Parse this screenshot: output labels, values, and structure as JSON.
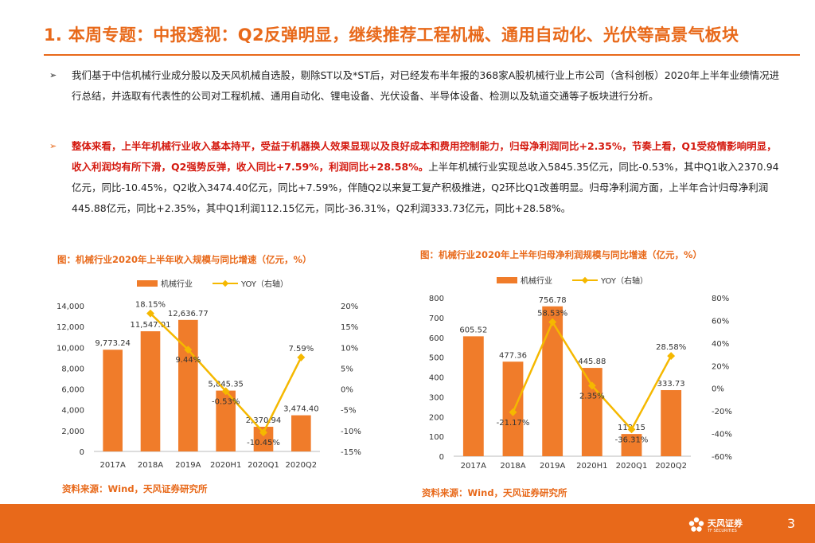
{
  "title": "1. 本周专题：中报透视：Q2反弹明显，继续推荐工程机械、通用自动化、光伏等高景气板块",
  "bullets": {
    "glyph": "➢",
    "p1": "我们基于中信机械行业成分股以及天风机械自选股，剔除ST以及*ST后，对已经发布半年报的368家A股机械行业上市公司（含科创板）2020年上半年业绩情况进行总结，并选取有代表性的公司对工程机械、通用自动化、锂电设备、光伏设备、半导体设备、检测以及轨道交通等子板块进行分析。",
    "p2_bold": "整体来看，上半年机械行业收入基本持平，受益于机器换人效果显现以及良好成本和费用控制能力，归母净利润同比+2.35%，节奏上看，Q1受疫情影响明显，收入利润均有所下滑，Q2强势反弹，收入同比+7.59%，利润同比+28.58%。",
    "p2_rest": "上半年机械行业实现总收入5845.35亿元，同比-0.53%，其中Q1收入2370.94亿元，同比-10.45%，Q2收入3474.40亿元，同比+7.59%，伴随Q2以来复工复产积极推进，Q2环比Q1改善明显。归母净利润方面，上半年合计归母净利润445.88亿元，同比+2.35%，其中Q1利润112.15亿元，同比-36.31%，Q2利润333.73亿元，同比+28.58%。"
  },
  "charts": [
    {
      "caption": "图：机械行业2020年上半年收入规模与同比增速（亿元，%）",
      "source": "资料来源：Wind，天风证券研究所"
    },
    {
      "caption": "图：机械行业2020年上半年归母净利润规模与同比增速（亿元，%）",
      "source": "资料来源：Wind，天风证券研究所"
    }
  ],
  "chart_data": [
    {
      "type": "bar",
      "title": "机械行业2020年上半年收入规模与同比增速（亿元，%）",
      "categories": [
        "2017A",
        "2018A",
        "2019A",
        "2020H1",
        "2020Q1",
        "2020Q2"
      ],
      "series": [
        {
          "name": "机械行业",
          "kind": "bar",
          "axis": "left",
          "values": [
            9773.24,
            11547.01,
            12636.77,
            5845.35,
            2370.94,
            3474.4
          ],
          "labels": [
            "9,773.24",
            "11,547.01",
            "12,636.77",
            "5,845.35",
            "2,370.94",
            "3,474.40"
          ]
        },
        {
          "name": "YOY（右轴）",
          "kind": "line",
          "axis": "right",
          "values": [
            null,
            18.15,
            9.44,
            -0.53,
            -10.45,
            7.59
          ],
          "labels": [
            "",
            "18.15%",
            "9.44%",
            "-0.53%",
            "-10.45%",
            "7.59%"
          ]
        }
      ],
      "ylim": [
        0,
        14000
      ],
      "yticks": [
        "0",
        "2,000",
        "4,000",
        "6,000",
        "8,000",
        "10,000",
        "12,000",
        "14,000"
      ],
      "y2lim": [
        -15,
        20
      ],
      "y2ticks": [
        "-15%",
        "-10%",
        "-5%",
        "0%",
        "5%",
        "10%",
        "15%",
        "20%"
      ],
      "legend": "top"
    },
    {
      "type": "bar",
      "title": "机械行业2020年上半年归母净利润规模与同比增速（亿元，%）",
      "categories": [
        "2017A",
        "2018A",
        "2019A",
        "2020H1",
        "2020Q1",
        "2020Q2"
      ],
      "series": [
        {
          "name": "机械行业",
          "kind": "bar",
          "axis": "left",
          "values": [
            605.52,
            477.36,
            756.78,
            445.88,
            112.15,
            333.73
          ],
          "labels": [
            "605.52",
            "477.36",
            "756.78",
            "445.88",
            "112.15",
            "333.73"
          ]
        },
        {
          "name": "YOY（右轴）",
          "kind": "line",
          "axis": "right",
          "values": [
            null,
            -21.17,
            58.53,
            2.35,
            -36.31,
            28.58
          ],
          "labels": [
            "",
            "-21.17%",
            "58.53%",
            "2.35%",
            "-36.31%",
            "28.58%"
          ]
        }
      ],
      "ylim": [
        0,
        800
      ],
      "yticks": [
        "0",
        "100",
        "200",
        "300",
        "400",
        "500",
        "600",
        "700",
        "800"
      ],
      "y2lim": [
        -60,
        80
      ],
      "y2ticks": [
        "-60%",
        "-40%",
        "-20%",
        "0%",
        "20%",
        "40%",
        "60%",
        "80%"
      ],
      "legend": "top"
    }
  ],
  "colors": {
    "accent": "#e8691a",
    "bar": "#f07c2a",
    "line": "#f5b800",
    "emphasis": "#d4190f"
  },
  "footer": {
    "brand": "天风证券",
    "brand_en": "TF SECURITIES",
    "page": "3",
    "logo_icon": "flower-logo-icon"
  }
}
